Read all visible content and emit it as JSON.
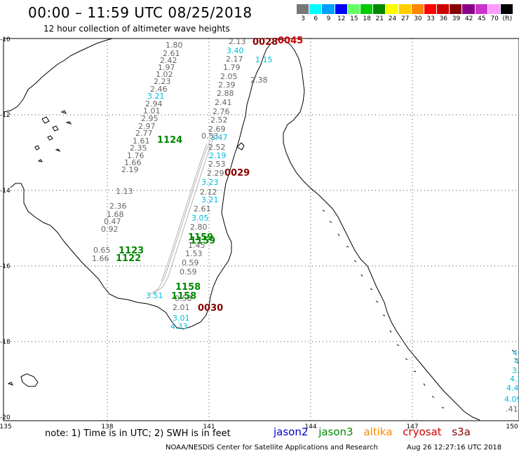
{
  "header": {
    "title": "00:00 – 11:59 UTC 08/25/2018",
    "subtitle": "12 hour collection of altimeter wave heights"
  },
  "colorbar": {
    "labels": [
      "3",
      "6",
      "9",
      "12",
      "15",
      "18",
      "21",
      "24",
      "27",
      "30",
      "33",
      "36",
      "39",
      "42",
      "45",
      "70",
      "(ft)"
    ],
    "colors": [
      "#777777",
      "#00ffff",
      "#00a0ff",
      "#0000ff",
      "#66ff66",
      "#00cc00",
      "#008800",
      "#ffff00",
      "#ffcc00",
      "#ff8800",
      "#ff0000",
      "#cc0000",
      "#880000",
      "#880088",
      "#cc33cc",
      "#ff99ff",
      "#000000"
    ]
  },
  "axes": {
    "lat_labels": [
      "-10",
      "-12",
      "-14",
      "-16",
      "-18",
      "-20"
    ],
    "lon_labels": [
      "135",
      "138",
      "141",
      "144",
      "147",
      "150"
    ]
  },
  "satellite_colors": {
    "jason2": "#0000cc",
    "jason3": "#008800",
    "altika": "#ff8800",
    "cryosat": "#cc0000",
    "s3a": "#880000",
    "gray_track": "#666666",
    "cyan_track": "#00bbdd"
  },
  "pass_labels": [
    {
      "text": "0028",
      "color": "s3a"
    },
    {
      "text": "0045",
      "color": "cryosat"
    },
    {
      "text": "1124",
      "color": "jason3"
    },
    {
      "text": "0029",
      "color": "s3a"
    },
    {
      "text": "1123",
      "color": "jason3"
    },
    {
      "text": "1122",
      "color": "jason3"
    },
    {
      "text": "1159",
      "color": "jason3"
    },
    {
      "text": "1159",
      "color": "jason3"
    },
    {
      "text": "1158",
      "color": "jason3"
    },
    {
      "text": "1158",
      "color": "jason3"
    },
    {
      "text": "0030",
      "color": "s3a"
    }
  ],
  "wave_values": {
    "track_west_gray": [
      "1.80",
      "2.61",
      "2.42",
      "1.97",
      "1.02",
      "2.23",
      "2.46",
      "2.94",
      "1.01",
      "2.95",
      "2.97",
      "2.77",
      "1.61",
      "2.35",
      "1.76",
      "1.66",
      "2.19"
    ],
    "track_west_cyan": [
      "3.21"
    ],
    "track_east_top": [
      "2.13",
      "2.17",
      "1.79",
      "2.05",
      "2.39",
      "2.88",
      "2.41",
      "2.76",
      "2.52",
      "2.69"
    ],
    "track_east_top_cyan": [
      "3.40",
      "1.15"
    ],
    "track_east_right": [
      "2.38"
    ],
    "track_center_gray": [
      "0.53",
      "2.52",
      "2.53",
      "2.29",
      "2.12",
      "2.61",
      "2.80",
      "1.45",
      "1.53",
      "0.59",
      "0.59",
      "0.58",
      "2.01"
    ],
    "track_center_cyan": [
      "3.47",
      "2.19",
      "3.23",
      "3.21",
      "3.05",
      "3.01",
      "4.33",
      "3.51"
    ],
    "isolated": [
      "1.13",
      "2.36",
      "1.68",
      "0.47",
      "0.92",
      "0.65",
      "1.66"
    ],
    "right_edge_cyan": [
      "4",
      "4",
      "3.",
      "4.2",
      "4.4",
      "4.09"
    ],
    "right_edge_gray": [
      ".41"
    ]
  },
  "footer": {
    "note": "note: 1) Time is in UTC; 2) SWH is in feet",
    "legend": [
      "jason2",
      "jason3",
      "altika",
      "cryosat",
      "s3a"
    ],
    "credit": "NOAA/NESDIS Center for Satellite Applications and Research",
    "timestamp": "Aug 26 12:27:16 UTC 2018"
  }
}
